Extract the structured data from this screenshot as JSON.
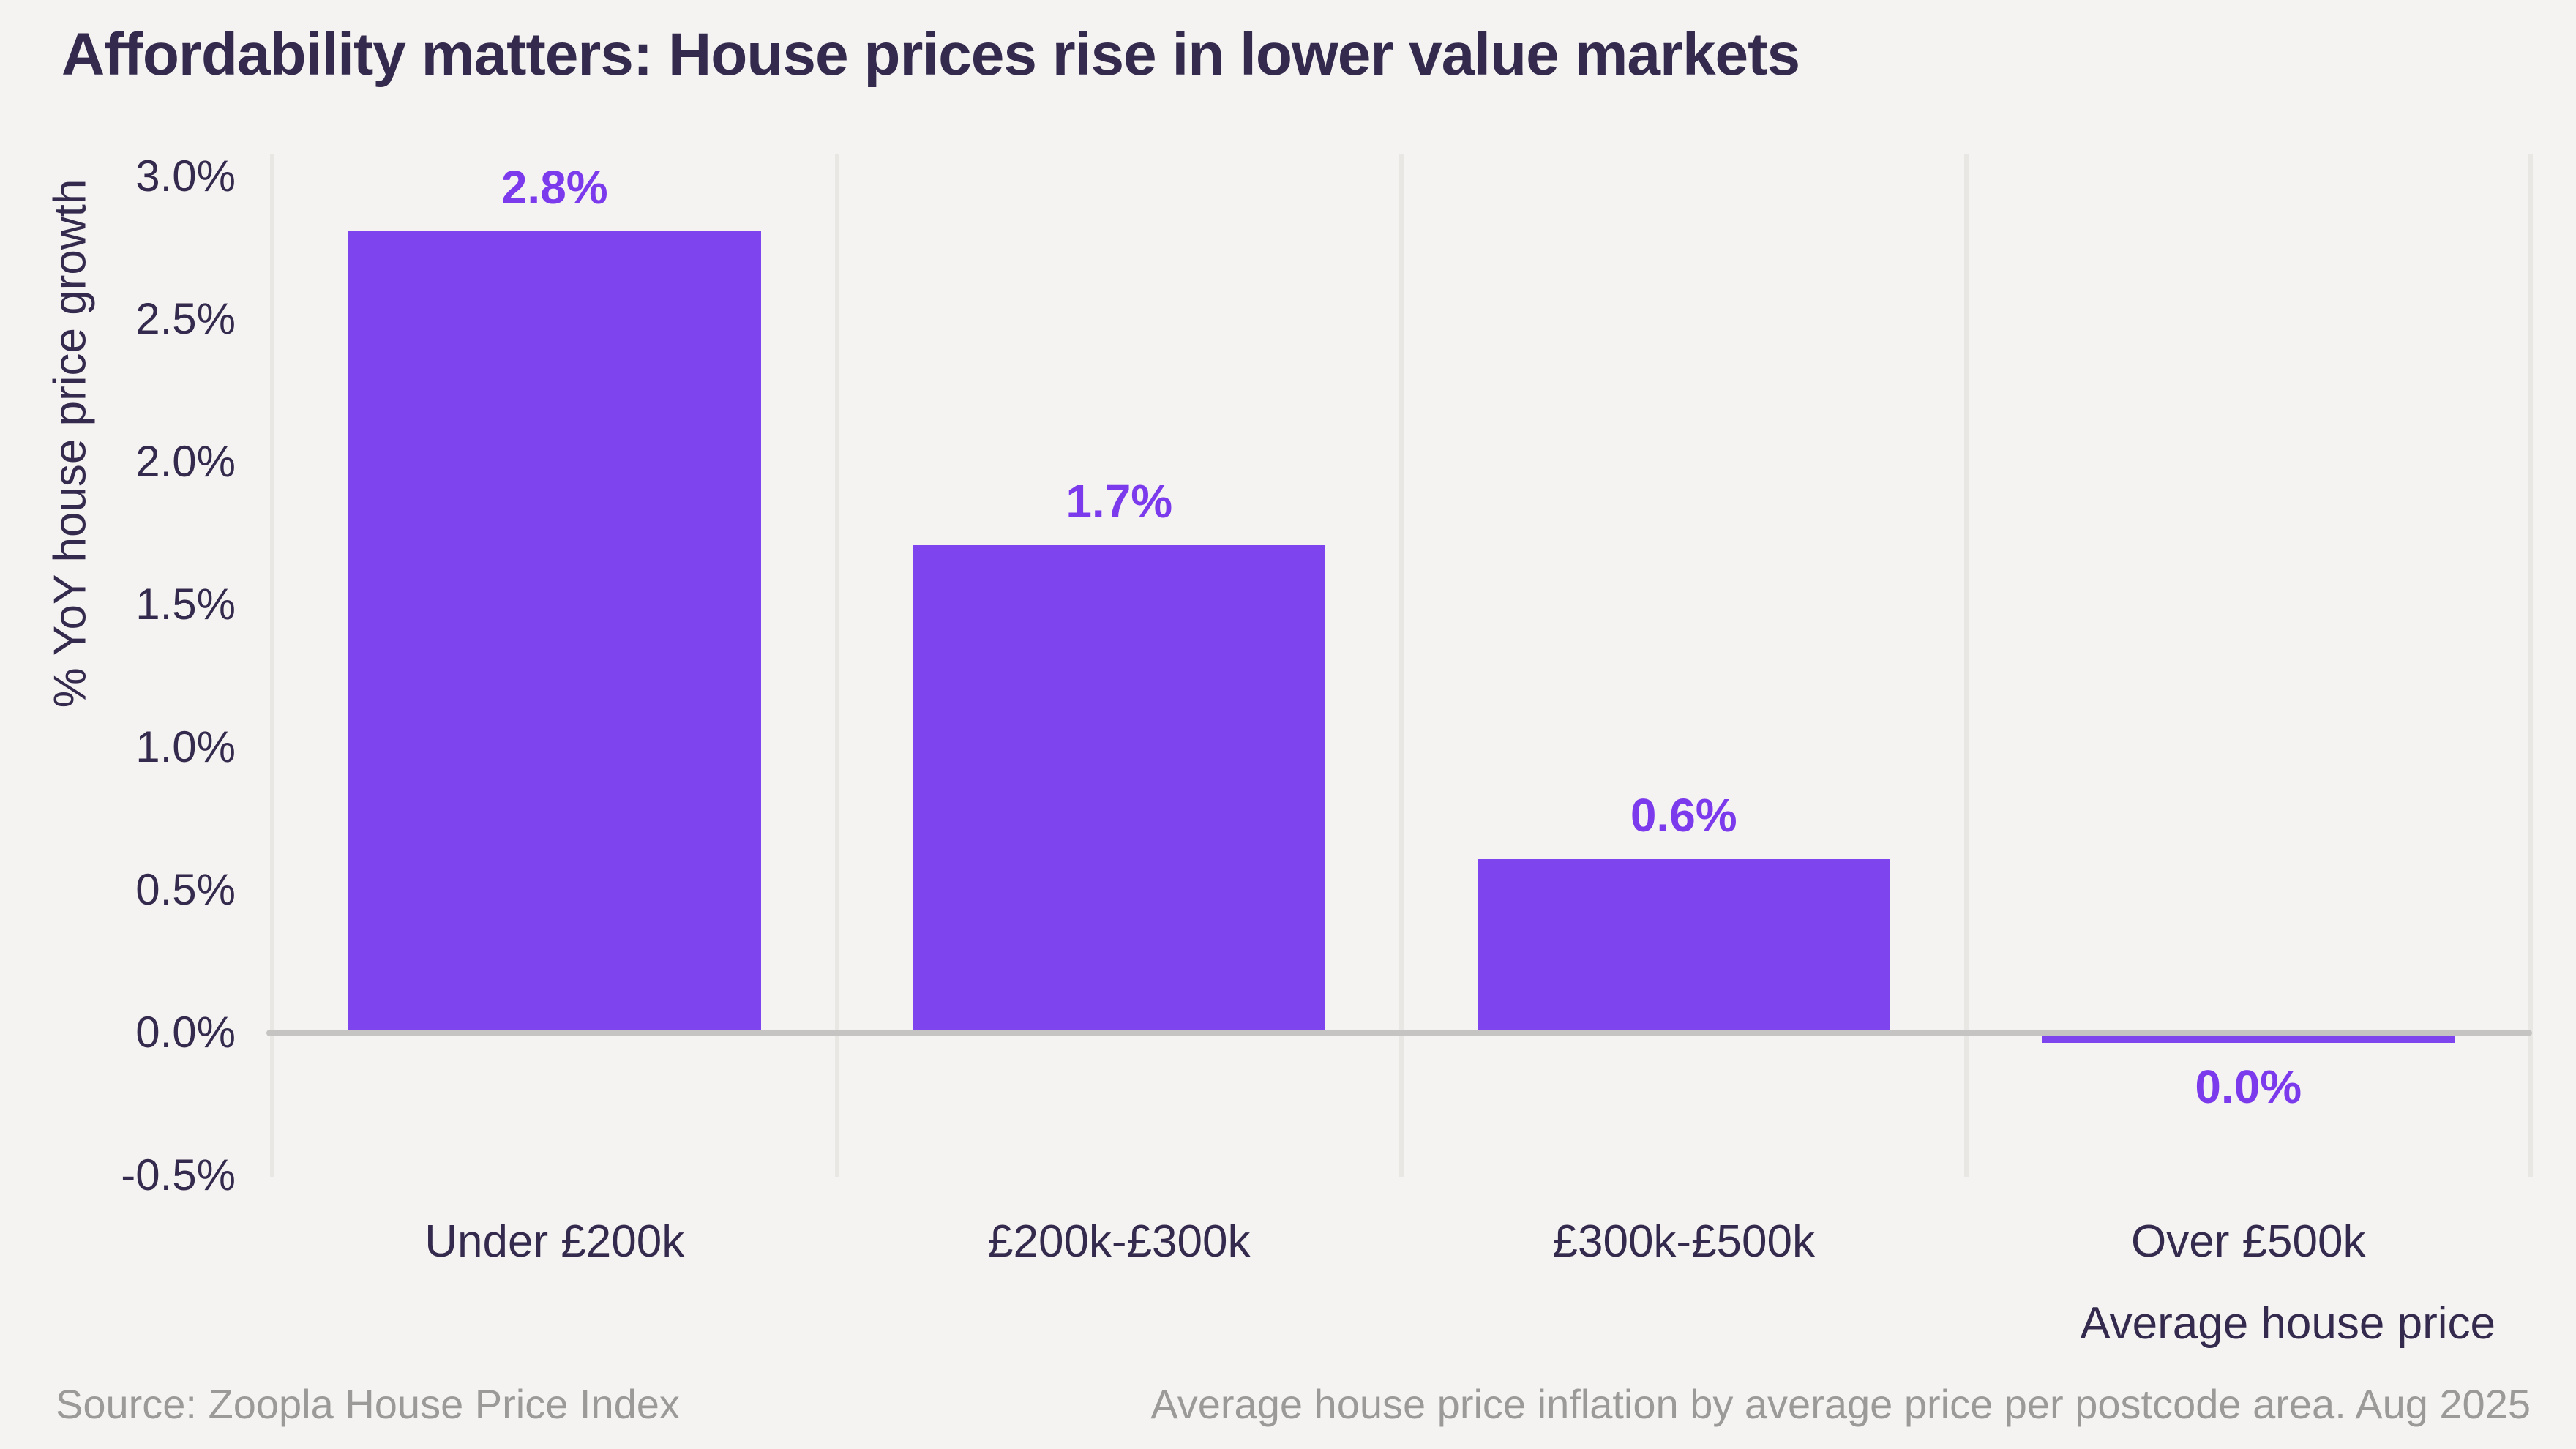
{
  "chart_data": {
    "type": "bar",
    "title": "Affordability matters: House prices rise in lower value markets",
    "ylabel": "% YoY house price growth",
    "xlabel": "Average house price",
    "categories": [
      "Under £200k",
      "£200k-£300k",
      "£300k-£500k",
      "Over £500k"
    ],
    "values": [
      2.8,
      1.7,
      0.6,
      0.0
    ],
    "bar_labels": [
      "2.8%",
      "1.7%",
      "0.6%",
      "0.0%"
    ],
    "bar_label_position": [
      "above",
      "above",
      "above",
      "below"
    ],
    "ytick_values": [
      3.0,
      2.5,
      2.0,
      1.5,
      1.0,
      0.5,
      0.0,
      -0.5
    ],
    "ytick_labels": [
      "3.0%",
      "2.5%",
      "2.0%",
      "1.5%",
      "1.0%",
      "0.5%",
      "0.0%",
      "-0.5%"
    ],
    "ylim": [
      -0.5,
      3.0
    ],
    "legend": "none",
    "grid": "vertical lines at category boundaries",
    "colors": {
      "background": "#F5F3F1",
      "bar": "#7E45EF",
      "bar_label": "#7C3AED",
      "axis_text": "#332A4D",
      "zero_line": "#C6C4C3",
      "gridline": "#E9E7E4",
      "muted_text": "#9C9A99"
    }
  },
  "footer": {
    "source": "Source: Zoopla House Price Index",
    "note": "Average house price inflation by average price per postcode area. Aug 2025"
  }
}
